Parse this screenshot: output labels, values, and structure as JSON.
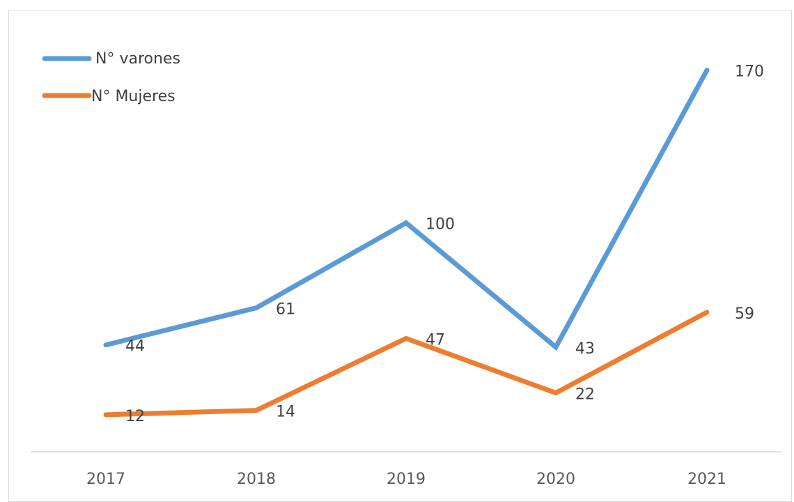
{
  "chart_data": {
    "type": "line",
    "categories": [
      "2017",
      "2018",
      "2019",
      "2020",
      "2021"
    ],
    "series": [
      {
        "name": "N° varones",
        "values": [
          44,
          61,
          100,
          43,
          170
        ],
        "color": "#5b9bd5"
      },
      {
        "name": "N° Mujeres",
        "values": [
          12,
          14,
          47,
          22,
          59
        ],
        "color": "#ed7d31"
      }
    ],
    "ylim": [
      -5,
      175
    ],
    "grid": false,
    "legend": "top-left",
    "data_labels": true
  }
}
